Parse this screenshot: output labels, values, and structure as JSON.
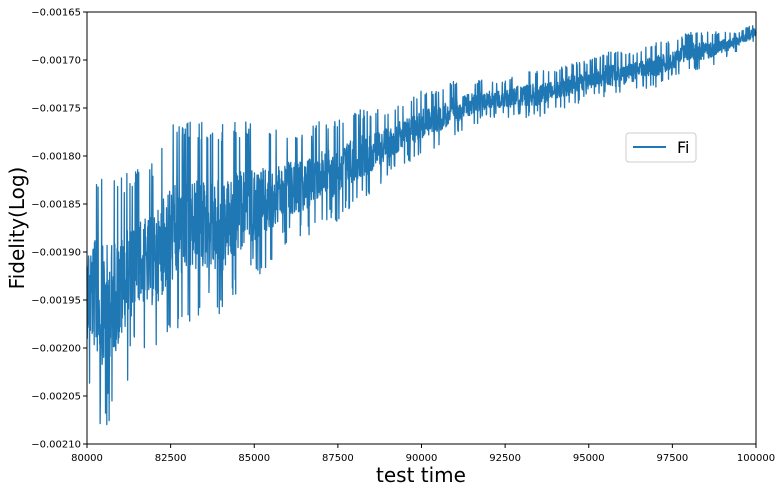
{
  "chart_data": {
    "type": "line",
    "title": "",
    "xlabel": "test time",
    "ylabel": "Fidelity(Log)",
    "xlim": [
      80000,
      100000
    ],
    "ylim": [
      -0.0021,
      -0.00165
    ],
    "xticks": [
      80000,
      82500,
      85000,
      87500,
      90000,
      92500,
      95000,
      97500,
      100000
    ],
    "xtick_labels": [
      "80000",
      "82500",
      "85000",
      "87500",
      "90000",
      "92500",
      "95000",
      "97500",
      "100000"
    ],
    "yticks": [
      -0.0021,
      -0.00205,
      -0.002,
      -0.00195,
      -0.0019,
      -0.00185,
      -0.0018,
      -0.00175,
      -0.0017,
      -0.00165
    ],
    "ytick_labels": [
      "−0.00210",
      "−0.00205",
      "−0.00200",
      "−0.00195",
      "−0.00190",
      "−0.00185",
      "−0.00180",
      "−0.00175",
      "−0.00170",
      "−0.00165"
    ],
    "grid": false,
    "legend_position": "center-right",
    "series": [
      {
        "name": "Fi",
        "color": "#1f77b4",
        "envelope": {
          "x": [
            80000,
            80500,
            81000,
            81500,
            82000,
            82500,
            83000,
            83500,
            84000,
            84500,
            85000,
            85500,
            86000,
            86500,
            87000,
            87500,
            88000,
            88500,
            89000,
            89500,
            90000,
            90500,
            91000,
            91500,
            92000,
            92500,
            93000,
            93500,
            94000,
            94500,
            95000,
            95500,
            96000,
            96500,
            97000,
            97500,
            98000,
            98500,
            99000,
            99500,
            100000
          ],
          "upper": [
            -0.00181,
            -0.00181,
            -0.00181,
            -0.00181,
            -0.0018,
            -0.00176,
            -0.00176,
            -0.00176,
            -0.00176,
            -0.00176,
            -0.00176,
            -0.00177,
            -0.00177,
            -0.00177,
            -0.00176,
            -0.00176,
            -0.00175,
            -0.00175,
            -0.00175,
            -0.00174,
            -0.00173,
            -0.00173,
            -0.00172,
            -0.00172,
            -0.00172,
            -0.00172,
            -0.00171,
            -0.00171,
            -0.00171,
            -0.0017,
            -0.0017,
            -0.00169,
            -0.00169,
            -0.00169,
            -0.00168,
            -0.00168,
            -0.00167,
            -0.00167,
            -0.00167,
            -0.00167,
            -0.00166
          ],
          "lower": [
            -0.00205,
            -0.00209,
            -0.00206,
            -0.002,
            -0.00201,
            -0.00199,
            -0.00198,
            -0.00197,
            -0.00198,
            -0.00195,
            -0.00193,
            -0.00192,
            -0.00189,
            -0.00189,
            -0.00187,
            -0.00187,
            -0.00185,
            -0.00184,
            -0.00182,
            -0.00181,
            -0.0018,
            -0.00179,
            -0.00178,
            -0.00177,
            -0.00176,
            -0.00176,
            -0.00176,
            -0.00176,
            -0.00175,
            -0.00175,
            -0.00174,
            -0.00174,
            -0.00174,
            -0.00173,
            -0.00173,
            -0.00172,
            -0.00171,
            -0.00171,
            -0.0017,
            -0.00169,
            -0.00168
          ]
        }
      }
    ]
  }
}
